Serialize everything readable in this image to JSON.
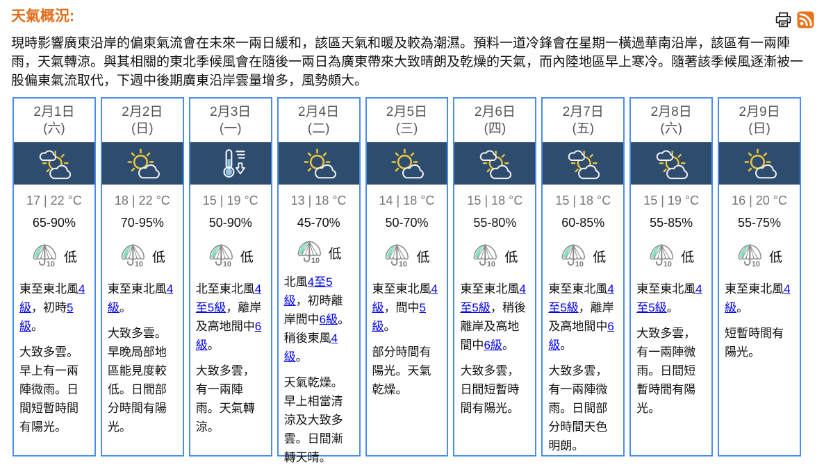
{
  "header": {
    "title": "天氣概況:",
    "summary": "現時影響廣東沿岸的偏東氣流會在未來一兩日緩和，該區天氣和暖及較為潮濕。預料一道冷鋒會在星期一橫過華南沿岸，該區有一兩陣雨，天氣轉涼。與其相關的東北季候風會在隨後一兩日為廣東帶來大致晴朗及乾燥的天氣，而內陸地區早上寒冷。隨著該季候風逐漸被一股偏東氣流取代，下週中後期廣東沿岸雲量增多，風勢頗大。",
    "icons": [
      "print-icon",
      "rss-icon"
    ]
  },
  "colors": {
    "title_orange": "#e06c18",
    "rss_orange": "#e8731c",
    "card_border_blue": "#4a8cf2",
    "icon_band_navy": "#2d4c6e",
    "sun_yellow": "#edc53f",
    "link_blue": "#0000ee",
    "temp_gray": "#767676",
    "umbrella_mint": "#7de3c4",
    "umbrella_gray": "#8a8a8a"
  },
  "forecast_days": [
    {
      "date": "2月1日",
      "weekday": "(六)",
      "icon": "sun-between-clouds",
      "temp": "17 | 22 °C",
      "humidity": "65-90%",
      "psr_label": "低",
      "wind": [
        {
          "text": "東至東北風"
        },
        {
          "text": "4級",
          "link": true
        },
        {
          "text": "，初時"
        },
        {
          "text": "5級",
          "link": true
        },
        {
          "text": "。"
        }
      ],
      "weather": "大致多雲。早上有一兩陣微雨。日間短暫時間有陽光。"
    },
    {
      "date": "2月2日",
      "weekday": "(日)",
      "icon": "sun-with-cloud",
      "temp": "18 | 22 °C",
      "humidity": "70-95%",
      "psr_label": "低",
      "wind": [
        {
          "text": "東至東北風"
        },
        {
          "text": "4級",
          "link": true
        },
        {
          "text": "。"
        }
      ],
      "weather": "大致多雲。早晚局部地區能見度較低。日間部分時間有陽光。"
    },
    {
      "date": "2月3日",
      "weekday": "(一)",
      "icon": "thermometer-down",
      "temp": "15 | 19 °C",
      "humidity": "50-90%",
      "psr_label": "低",
      "wind": [
        {
          "text": "北至東北風"
        },
        {
          "text": "4至5級",
          "link": true
        },
        {
          "text": "，離岸及高地間中"
        },
        {
          "text": "6級",
          "link": true
        },
        {
          "text": "。"
        }
      ],
      "weather": "大致多雲，有一兩陣雨。天氣轉涼。"
    },
    {
      "date": "2月4日",
      "weekday": "(二)",
      "icon": "sun-with-cloud",
      "temp": "13 | 18 °C",
      "humidity": "45-70%",
      "psr_label": "低",
      "wind": [
        {
          "text": "北風"
        },
        {
          "text": "4至5級",
          "link": true
        },
        {
          "text": "，初時離岸間中"
        },
        {
          "text": "6級",
          "link": true
        },
        {
          "text": "。稍後東風"
        },
        {
          "text": "4級",
          "link": true
        },
        {
          "text": "。"
        }
      ],
      "weather": "天氣乾燥。早上相當清涼及大致多雲。日間漸轉天晴。"
    },
    {
      "date": "2月5日",
      "weekday": "(三)",
      "icon": "sun-with-cloud",
      "temp": "14 | 18 °C",
      "humidity": "50-70%",
      "psr_label": "低",
      "wind": [
        {
          "text": "東至東北風"
        },
        {
          "text": "4級",
          "link": true
        },
        {
          "text": "，間中"
        },
        {
          "text": "5級",
          "link": true
        },
        {
          "text": "。"
        }
      ],
      "weather": "部分時間有陽光。天氣乾燥。"
    },
    {
      "date": "2月6日",
      "weekday": "(四)",
      "icon": "sun-between-clouds",
      "temp": "15 | 18 °C",
      "humidity": "55-80%",
      "psr_label": "低",
      "wind": [
        {
          "text": "東至東北風"
        },
        {
          "text": "4至5級",
          "link": true
        },
        {
          "text": "，稍後離岸及高地間中"
        },
        {
          "text": "6級",
          "link": true
        },
        {
          "text": "。"
        }
      ],
      "weather": "大致多雲，日間短暫時間有陽光。"
    },
    {
      "date": "2月7日",
      "weekday": "(五)",
      "icon": "sun-between-clouds",
      "temp": "15 | 18 °C",
      "humidity": "60-85%",
      "psr_label": "低",
      "wind": [
        {
          "text": "東至東北風"
        },
        {
          "text": "4至5級",
          "link": true
        },
        {
          "text": "，離岸及高地間中"
        },
        {
          "text": "6級",
          "link": true
        },
        {
          "text": "。"
        }
      ],
      "weather": "大致多雲，有一兩陣微雨。日間部分時間天色明朗。"
    },
    {
      "date": "2月8日",
      "weekday": "(六)",
      "icon": "sun-between-clouds",
      "temp": "15 | 19 °C",
      "humidity": "55-85%",
      "psr_label": "低",
      "wind": [
        {
          "text": "東至東北風"
        },
        {
          "text": "4至5級",
          "link": true
        },
        {
          "text": "。"
        }
      ],
      "weather": "大致多雲，有一兩陣微雨。日間短暫時間有陽光。"
    },
    {
      "date": "2月9日",
      "weekday": "(日)",
      "icon": "sun-with-cloud",
      "temp": "16 | 20 °C",
      "humidity": "55-75%",
      "psr_label": "低",
      "wind": [
        {
          "text": "東至東北風"
        },
        {
          "text": "4級",
          "link": true
        },
        {
          "text": "。"
        }
      ],
      "weather": "短暫時間有陽光。"
    }
  ]
}
